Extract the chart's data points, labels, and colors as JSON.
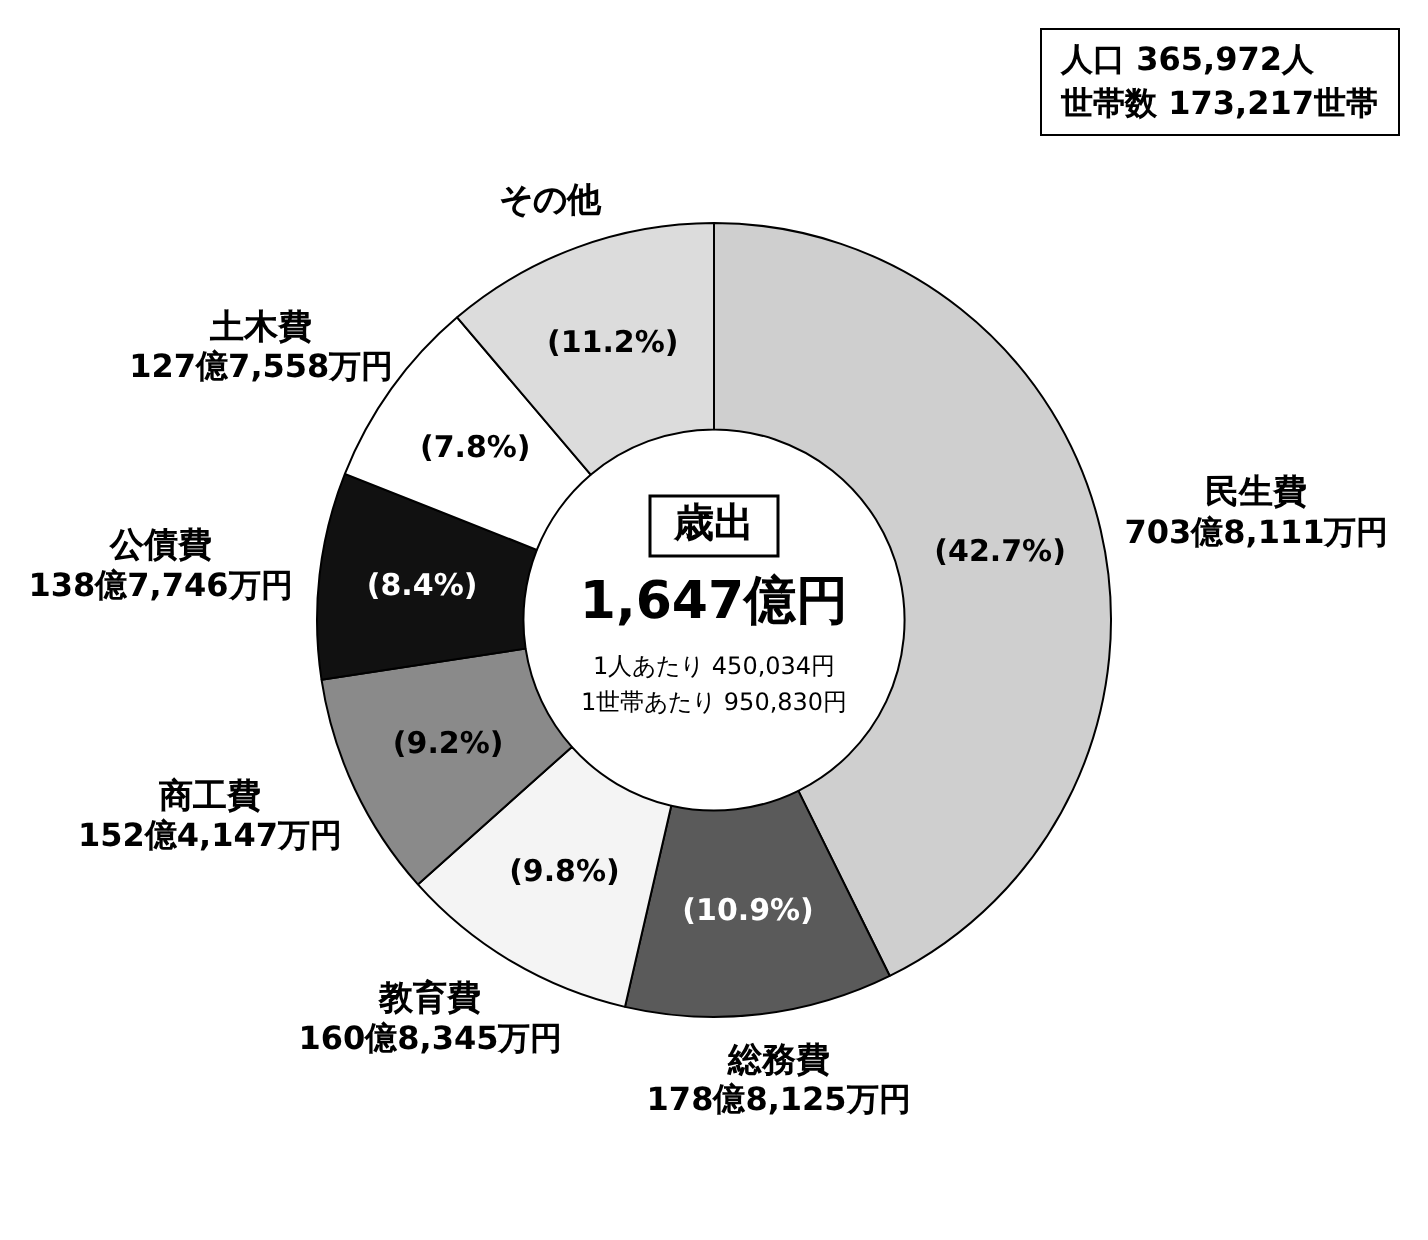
{
  "chart_data": {
    "type": "donut",
    "title": "歳出",
    "subtitle": "1,647億円",
    "categories": [
      "民生費",
      "総務費",
      "教育費",
      "商工費",
      "公債費",
      "土木費",
      "その他"
    ],
    "values": [
      42.7,
      10.9,
      9.8,
      9.2,
      8.4,
      7.8,
      11.2
    ],
    "colors": [
      "#cfcfcf",
      "#5a5a5a",
      "#f4f4f4",
      "#8a8a8a",
      "#111111",
      "#ffffff",
      "#dcdcdc"
    ],
    "value_labels": [
      "(42.7%)",
      "(10.9%)",
      "(9.8%)",
      "(9.2%)",
      "(8.4%)",
      "(7.8%)",
      "(11.2%)"
    ],
    "annotations": [
      "1人あたり 450,034円",
      "1世帯あたり 950,830円",
      "人口 365,972人",
      "世帯数 173,217世帯",
      {
        "text": "703億8,111万円",
        "x": "民生費"
      },
      {
        "text": "178億8,125万円",
        "x": "総務費"
      },
      {
        "text": "160億8,345万円",
        "x": "教育費"
      },
      {
        "text": "152億4,147万円",
        "x": "商工費"
      },
      {
        "text": "138億7,746万円",
        "x": "公債費"
      },
      {
        "text": "127億7,558万円",
        "x": "土木費"
      }
    ],
    "legend": false
  }
}
